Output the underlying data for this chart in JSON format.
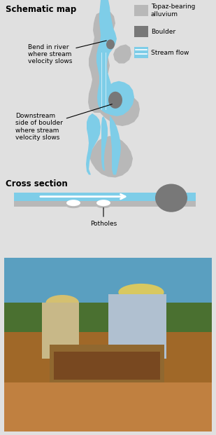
{
  "bg_color": "#e0e0e0",
  "stream_blue": "#7ecde8",
  "alluvium_gray": "#b8b8b8",
  "boulder_dark": "#787878",
  "title_schematic": "Schematic map",
  "title_cross": "Cross section",
  "legend_items": [
    {
      "label": "Topaz-bearing\nalluvium",
      "color": "#b8b8b8"
    },
    {
      "label": "Boulder",
      "color": "#787878"
    },
    {
      "label": "Stream flow",
      "color": "#7ecde8"
    }
  ],
  "label1_text": "Bend in river\nwhere stream\nvelocity slows",
  "label2_text": "Downstream\nside of boulder\nwhere stream\nvelocity slows",
  "label3_text": "Potholes",
  "photo_colors": {
    "sky": "#5a9fc0",
    "trees": "#4a7030",
    "ground": "#a06828",
    "water_fg": "#c08040",
    "person_left_hat": "#d4c070",
    "person_left_body": "#c8b888",
    "person_right_hat": "#d8c860",
    "person_right_body": "#b0c0d0",
    "sieve_frame": "#906830",
    "sieve_inner": "#784820"
  },
  "fig_width": 3.09,
  "fig_height": 6.21,
  "dpi": 100
}
